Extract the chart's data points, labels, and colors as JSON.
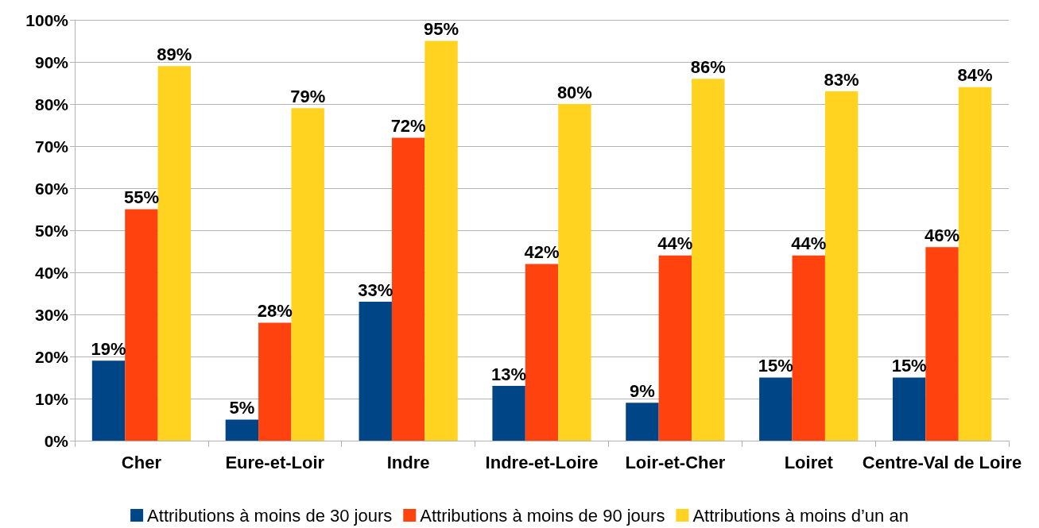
{
  "chart_data": {
    "type": "bar",
    "categories": [
      "Cher",
      "Eure-et-Loir",
      "Indre",
      "Indre-et-Loire",
      "Loir-et-Cher",
      "Loiret",
      "Centre-Val de Loire"
    ],
    "series": [
      {
        "name": "Attributions à moins de 30 jours",
        "color": "#004586",
        "values": [
          19,
          5,
          33,
          13,
          9,
          15,
          15
        ],
        "value_labels": [
          "19%",
          "5%",
          "33%",
          "13%",
          "9%",
          "15%",
          "15%"
        ]
      },
      {
        "name": "Attributions à moins de 90 jours",
        "color": "#ff420e",
        "values": [
          55,
          28,
          72,
          42,
          44,
          44,
          46
        ],
        "value_labels": [
          "55%",
          "28%",
          "72%",
          "42%",
          "44%",
          "44%",
          "46%"
        ]
      },
      {
        "name": "Attributions à moins d’un an",
        "color": "#ffd320",
        "values": [
          89,
          79,
          95,
          80,
          86,
          83,
          84
        ],
        "value_labels": [
          "89%",
          "79%",
          "95%",
          "80%",
          "86%",
          "83%",
          "84%"
        ]
      }
    ],
    "ylim": [
      0,
      100
    ],
    "yticks": [
      {
        "value": 0,
        "label": "0%"
      },
      {
        "value": 10,
        "label": "10%"
      },
      {
        "value": 20,
        "label": "20%"
      },
      {
        "value": 30,
        "label": "30%"
      },
      {
        "value": 40,
        "label": "40%"
      },
      {
        "value": 50,
        "label": "50%"
      },
      {
        "value": 60,
        "label": "60%"
      },
      {
        "value": 70,
        "label": "70%"
      },
      {
        "value": 80,
        "label": "80%"
      },
      {
        "value": 90,
        "label": "90%"
      },
      {
        "value": 100,
        "label": "100%"
      }
    ],
    "grid": "y",
    "legend": "bottom"
  }
}
